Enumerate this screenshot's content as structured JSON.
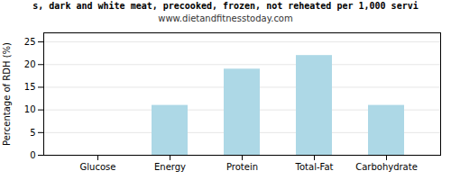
{
  "chart_data": {
    "type": "bar",
    "title": "s, dark and white meat, precooked, frozen, not reheated per 1,000 servi",
    "subtitle": "www.dietandfitnesstoday.com",
    "categories": [
      "Glucose",
      "Energy",
      "Protein",
      "Total-Fat",
      "Carbohydrate"
    ],
    "values": [
      0,
      11.0,
      19.0,
      22.0,
      11.0
    ],
    "color": "#add8e6",
    "ylabel": "Percentage of RDH (%)",
    "ylim": [
      0,
      27
    ],
    "yticks": [
      0,
      5,
      10,
      15,
      20,
      25
    ],
    "grid": true
  }
}
